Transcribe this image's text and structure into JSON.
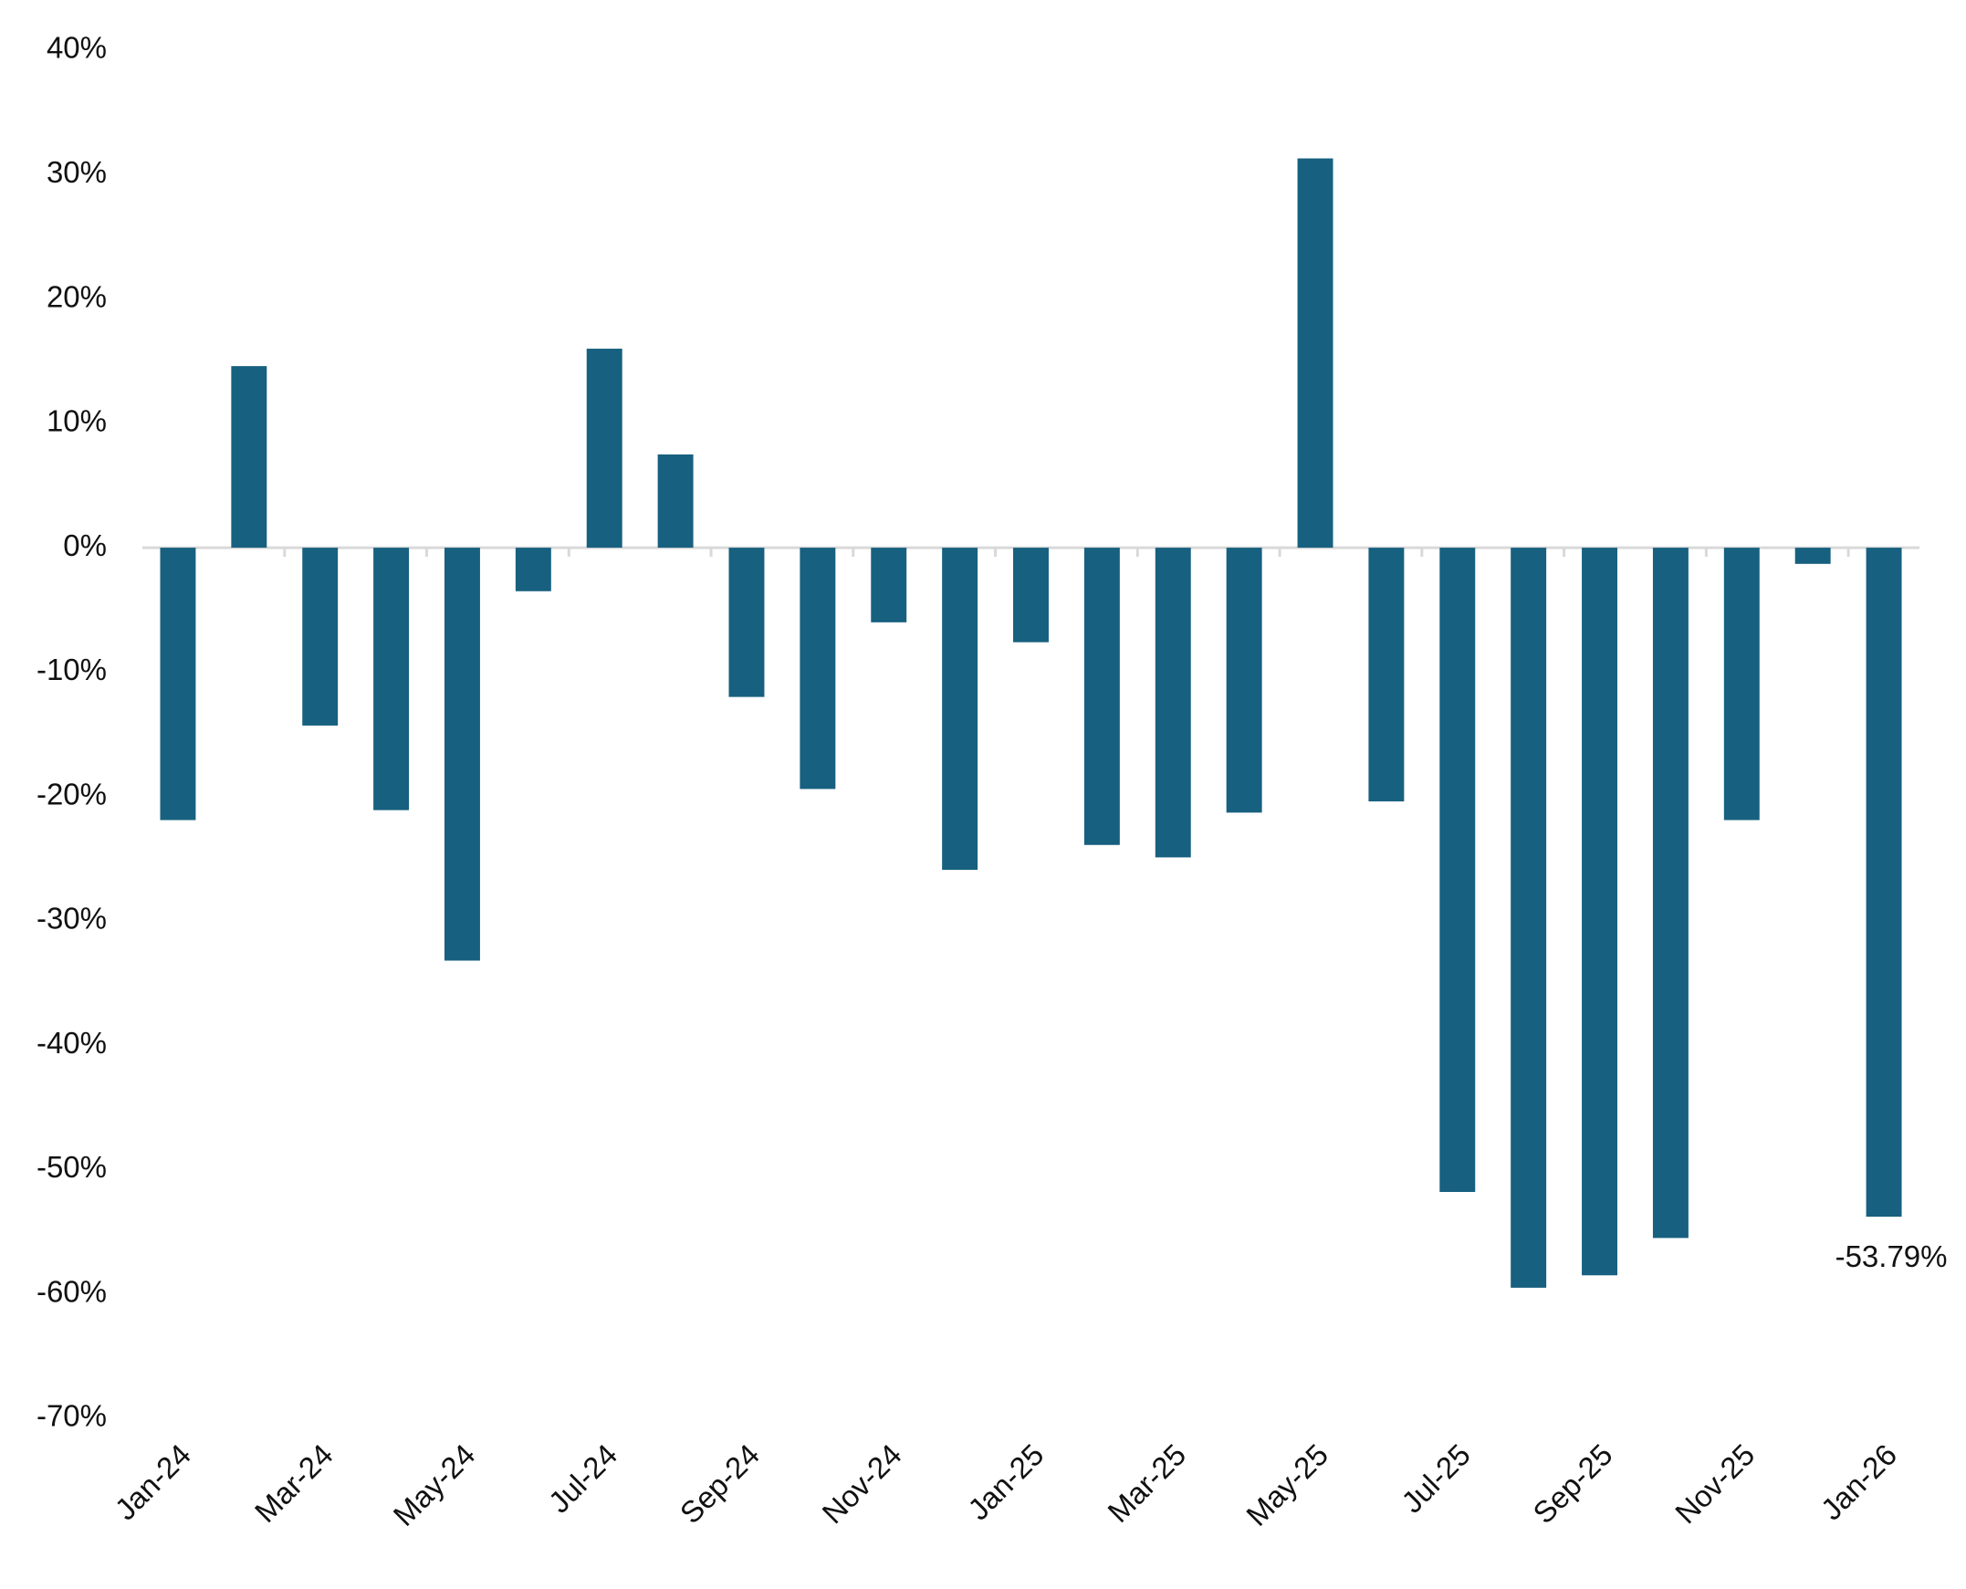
{
  "chart_data": {
    "type": "bar",
    "categories": [
      "Jan-24",
      null,
      "Mar-24",
      null,
      "May-24",
      null,
      "Jul-24",
      null,
      "Sep-24",
      null,
      "Nov-24",
      null,
      "Jan-25",
      null,
      "Mar-25",
      null,
      "May-25",
      null,
      "Jul-25",
      null,
      "Sep-25",
      null,
      "Nov-25",
      null,
      "Jan-26"
    ],
    "values": [
      -21.9,
      14.6,
      -14.3,
      -21.1,
      -33.2,
      -3.5,
      16.0,
      7.5,
      -12.0,
      -19.4,
      -6.0,
      -25.9,
      -7.6,
      -23.9,
      -24.9,
      -21.3,
      31.3,
      -20.4,
      -51.8,
      -59.5,
      -58.5,
      -55.5,
      -21.9,
      -1.3,
      -53.79
    ],
    "value_labels": [
      null,
      null,
      null,
      null,
      null,
      null,
      null,
      null,
      null,
      null,
      null,
      null,
      null,
      null,
      null,
      null,
      null,
      null,
      null,
      null,
      null,
      null,
      null,
      null,
      "-53.79%"
    ],
    "color": "#17607f",
    "ylim": [
      -70,
      40
    ],
    "yticks": [
      {
        "value": 40,
        "label": "40%"
      },
      {
        "value": 30,
        "label": "30%"
      },
      {
        "value": 20,
        "label": "20%"
      },
      {
        "value": 10,
        "label": "10%"
      },
      {
        "value": 0,
        "label": "0%"
      },
      {
        "value": -10,
        "label": "-10%"
      },
      {
        "value": -20,
        "label": "-20%"
      },
      {
        "value": -30,
        "label": "-30%"
      },
      {
        "value": -40,
        "label": "-40%"
      },
      {
        "value": -50,
        "label": "-50%"
      },
      {
        "value": -60,
        "label": "-60%"
      },
      {
        "value": -70,
        "label": "-70%"
      }
    ],
    "grid": false
  }
}
